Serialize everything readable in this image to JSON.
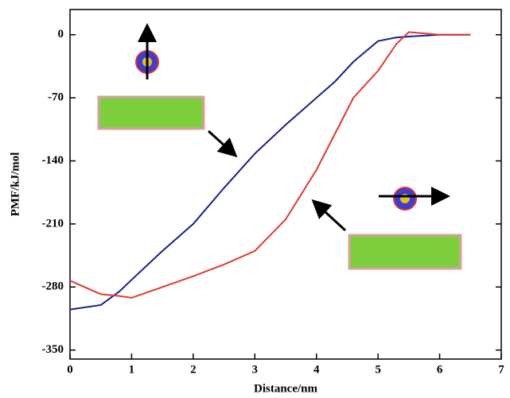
{
  "chart_data": {
    "type": "line",
    "x_label": "Distance/nm",
    "y_label": "PMF/kJ/mol",
    "x": [
      0,
      0.5,
      0.8,
      1,
      1.5,
      2,
      2.5,
      3,
      3.5,
      4,
      4.3,
      4.6,
      5,
      5.3,
      5.5,
      6,
      6.5
    ],
    "series": [
      {
        "color": "#1c1f8a",
        "values": [
          -305,
          -300,
          -285,
          -272,
          -240,
          -210,
          -170,
          -132,
          -100,
          -70,
          -52,
          -30,
          -7,
          -3,
          -2,
          0,
          0
        ]
      },
      {
        "color": "#e03a2f",
        "values": [
          -273,
          -288,
          -290,
          -292,
          -280,
          -268,
          -255,
          -240,
          -205,
          -150,
          -110,
          -70,
          -40,
          -10,
          3,
          0,
          0
        ]
      }
    ],
    "xlim": [
      0,
      7
    ],
    "xticks": [
      0,
      1,
      2,
      3,
      4,
      5,
      6,
      7
    ],
    "ylim": [
      -360,
      28
    ],
    "yticks": [
      0,
      -70,
      -140,
      -210,
      -280,
      -350
    ]
  }
}
